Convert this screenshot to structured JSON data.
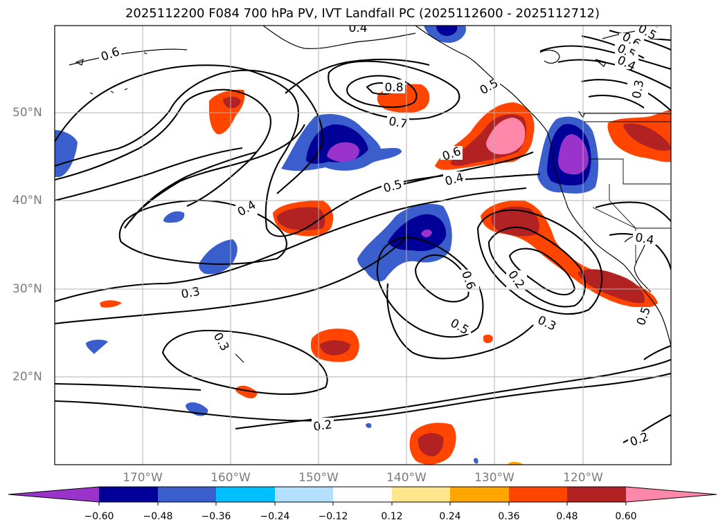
{
  "title": "2025112200 F084 700 hPa PV, IVT Landfall PC (2025112600 - 2025112712)",
  "map": {
    "lat_ticks": [
      "50°N",
      "40°N",
      "30°N",
      "20°N"
    ],
    "lon_ticks": [
      "170°W",
      "160°W",
      "150°W",
      "140°W",
      "130°W",
      "120°W"
    ],
    "contour_labels": [
      "0.4",
      "0.6",
      "0.8",
      "0.7",
      "0.5",
      "0.5",
      "0.4",
      "0.6",
      "0.6",
      "0.5",
      "0.4",
      "0.3",
      "0.5",
      "0.4",
      "0.4",
      "0.3",
      "0.6",
      "0.2",
      "0.3",
      "0.5",
      "0.3",
      "0.5",
      "0.2",
      "0.2"
    ]
  },
  "colorbar": {
    "ticks": [
      "−0.60",
      "−0.48",
      "−0.36",
      "−0.24",
      "−0.12",
      "0.12",
      "0.24",
      "0.36",
      "0.48",
      "0.60"
    ],
    "colors": [
      "#9933cc",
      "#000099",
      "#3a5fcd",
      "#00bfff",
      "#b3e0ff",
      "#ffffff",
      "#ffe68c",
      "#ffa500",
      "#ff4500",
      "#b22222",
      "#ff88aa"
    ]
  }
}
